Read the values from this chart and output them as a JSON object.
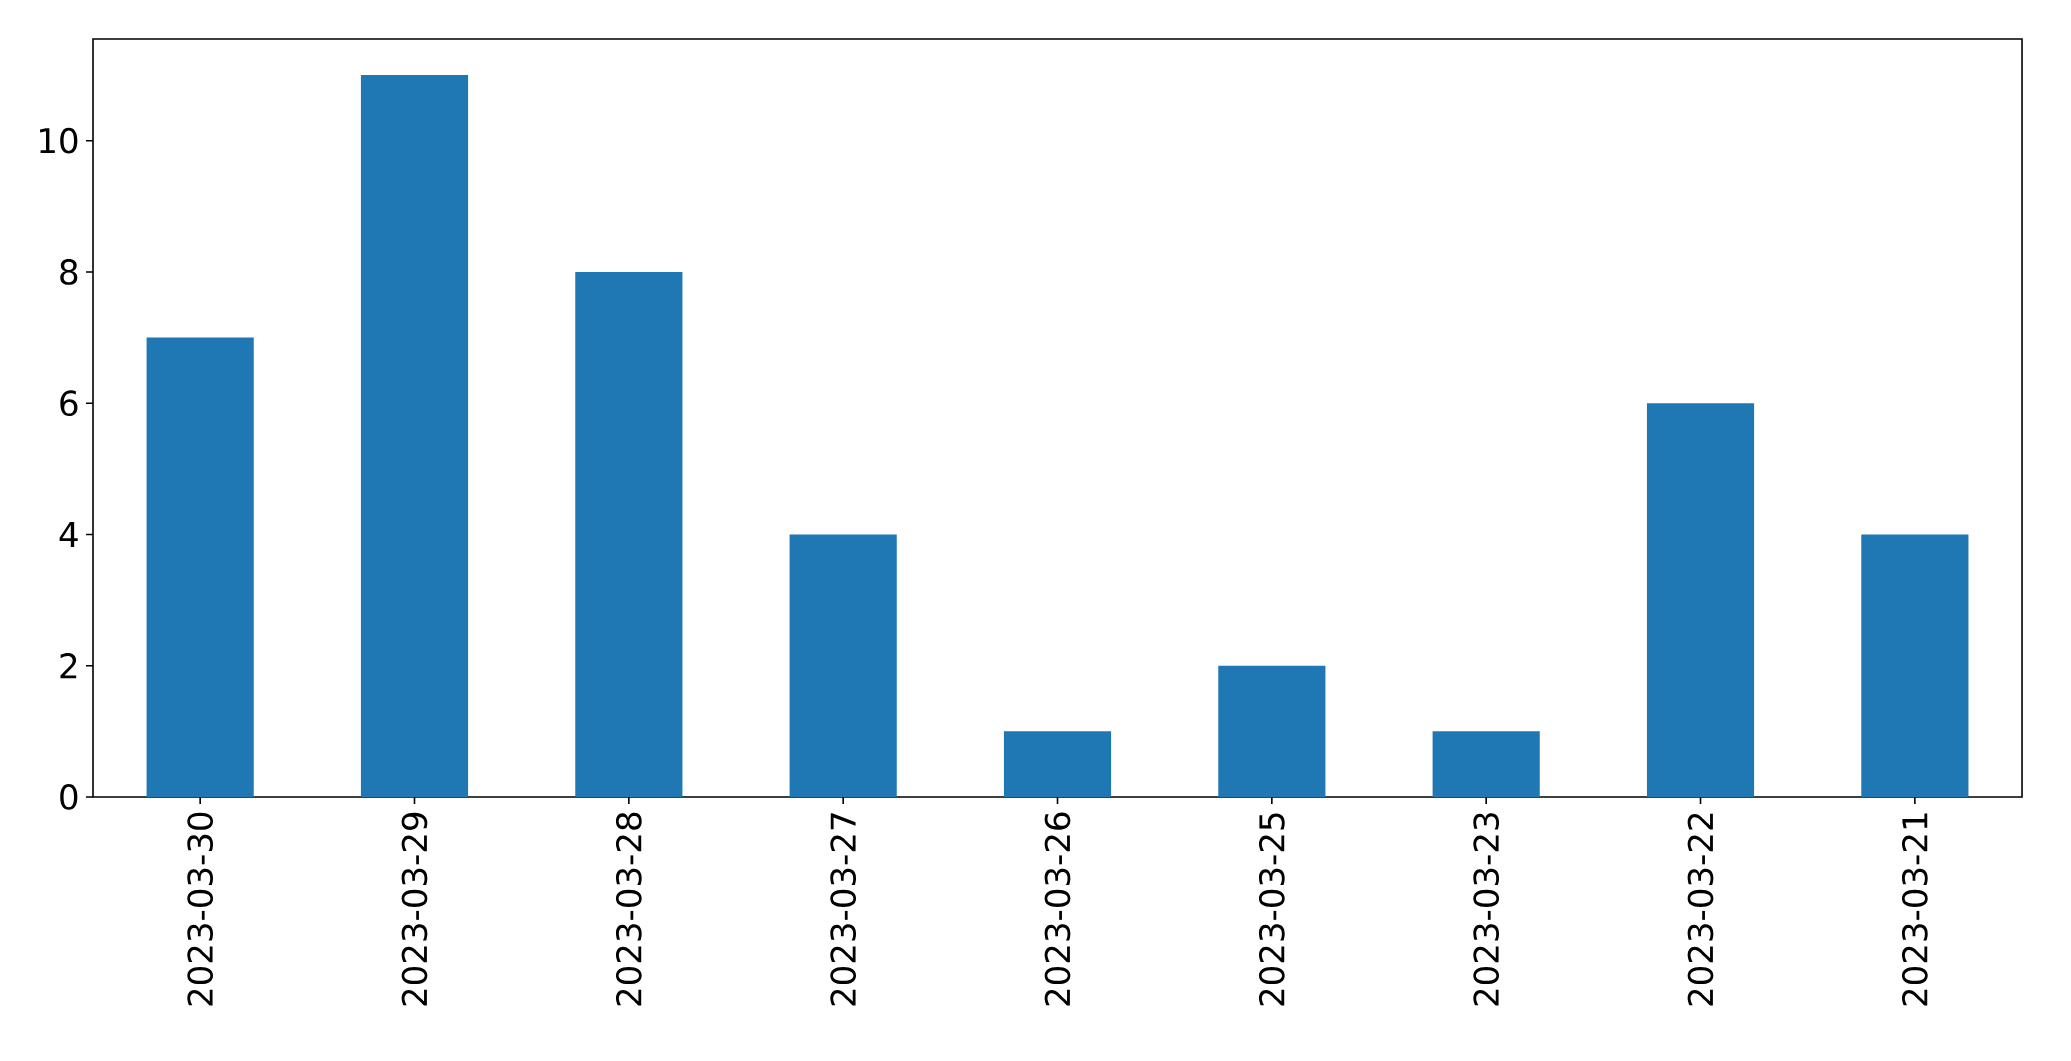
{
  "chart_data": {
    "type": "bar",
    "categories": [
      "2023-03-30",
      "2023-03-29",
      "2023-03-28",
      "2023-03-27",
      "2023-03-26",
      "2023-03-25",
      "2023-03-23",
      "2023-03-22",
      "2023-03-21"
    ],
    "values": [
      7,
      11,
      8,
      4,
      1,
      2,
      1,
      6,
      4
    ],
    "color": "#1f77b4",
    "ylim": [
      0,
      11.55
    ],
    "yticks": [
      0,
      2,
      4,
      6,
      8,
      10
    ]
  }
}
